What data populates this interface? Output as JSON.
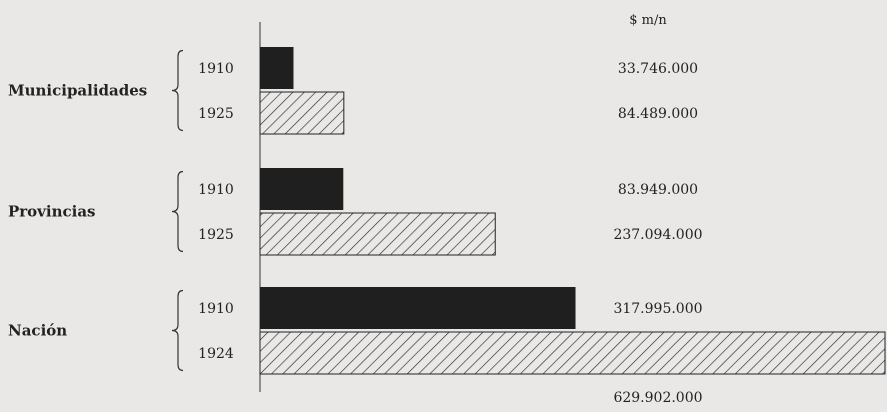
{
  "chart_data": {
    "type": "bar",
    "orientation": "horizontal",
    "unit_label": "$ m/n",
    "groups": [
      {
        "category": "Municipalidades",
        "bars": [
          {
            "year": "1910",
            "value": 33746000,
            "value_label": "33.746.000",
            "style": "solid"
          },
          {
            "year": "1925",
            "value": 84489000,
            "value_label": "84.489.000",
            "style": "hatched"
          }
        ]
      },
      {
        "category": "Provincias",
        "bars": [
          {
            "year": "1910",
            "value": 83949000,
            "value_label": "83.949.000",
            "style": "solid"
          },
          {
            "year": "1925",
            "value": 237094000,
            "value_label": "237.094.000",
            "style": "hatched"
          }
        ]
      },
      {
        "category": "Nación",
        "bars": [
          {
            "year": "1910",
            "value": 317995000,
            "value_label": "317.995.000",
            "style": "solid"
          },
          {
            "year": "1924",
            "value": 629902000,
            "value_label": "629.902.000",
            "style": "hatched"
          }
        ]
      }
    ],
    "xlim": [
      0,
      629902000
    ],
    "grid": false,
    "legend": "none",
    "colors": {
      "solid": "#1f1f1f",
      "hatch": "#2a2a2a",
      "background": "#e9e8e6"
    }
  }
}
